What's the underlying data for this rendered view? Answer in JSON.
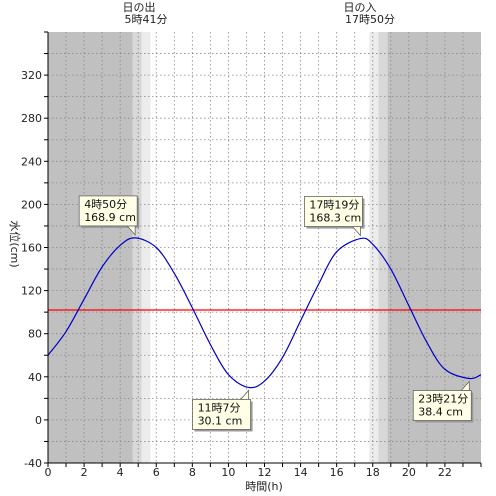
{
  "chart_data": {
    "type": "line",
    "xlabel": "時間(h)",
    "ylabel": "水位(cm)",
    "xlim": [
      0,
      24
    ],
    "ylim": [
      -40,
      360
    ],
    "x_ticks": [
      0,
      2,
      4,
      6,
      8,
      10,
      12,
      14,
      16,
      18,
      20,
      22
    ],
    "y_ticks": [
      -40,
      0,
      40,
      80,
      120,
      160,
      200,
      240,
      280,
      320
    ],
    "grid": true,
    "sun": {
      "sunrise": {
        "label": "日の出",
        "time": "5時41分",
        "hour": 5.683
      },
      "sunset": {
        "label": "日の入",
        "time": "17時50分",
        "hour": 17.833
      }
    },
    "reference_line": {
      "y": 102,
      "color": "#ff0000"
    },
    "series": [
      {
        "color": "#0000cc",
        "x": [
          0,
          1,
          2,
          3,
          4,
          4.833,
          6,
          7,
          8,
          9,
          10,
          11.117,
          12,
          13,
          14,
          15,
          16,
          17.317,
          18,
          19,
          20,
          21,
          22,
          23.35,
          24
        ],
        "y": [
          60,
          82,
          112,
          142,
          162,
          168.9,
          160,
          136,
          104,
          70,
          42,
          30.1,
          36,
          58,
          92,
          126,
          156,
          168.3,
          163,
          140,
          106,
          72,
          47,
          38.4,
          42
        ]
      }
    ],
    "annotations": [
      {
        "time": "4時50分",
        "value": "168.9 cm",
        "x": 4.833,
        "y": 168.9,
        "side": "above"
      },
      {
        "time": "11時7分",
        "value": "30.1 cm",
        "x": 11.117,
        "y": 30.1,
        "side": "below"
      },
      {
        "time": "17時19分",
        "value": "168.3 cm",
        "x": 17.317,
        "y": 168.3,
        "side": "above"
      },
      {
        "time": "23時21分",
        "value": "38.4 cm",
        "x": 23.35,
        "y": 38.4,
        "side": "below"
      }
    ],
    "colors": {
      "night": "#c0c0c0",
      "twilight": "#d8d8d8",
      "twilight_light": "#ececec",
      "day": "#ffffff",
      "grid": "#888888"
    }
  }
}
